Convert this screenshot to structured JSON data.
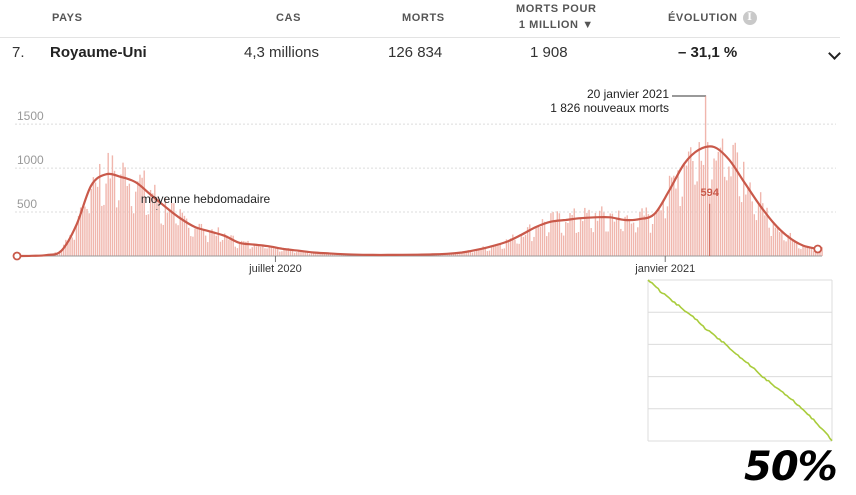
{
  "table": {
    "headers": {
      "country": "PAYS",
      "cases": "CAS",
      "deaths": "MORTS",
      "per_million_line1": "MORTS POUR",
      "per_million_line2": "1 MILLION ▼",
      "evolution": "ÉVOLUTION"
    },
    "row": {
      "rank": "7.",
      "country": "Royaume-Uni",
      "cases": "4,3 millions",
      "deaths": "126 834",
      "per_million": "1 908",
      "evolution": "– 31,1 %"
    }
  },
  "annotations": {
    "weekly_average": "moyenne hebdomadaire",
    "peak_date": "20 janvier 2021",
    "peak_deaths": "1 826 nouveaux morts",
    "current_value": "594"
  },
  "big_percent": "50%",
  "colors": {
    "bars": "#f0b6ad",
    "line": "#c9594a",
    "grid": "#dcdcdc",
    "mini_line": "#a9cc3c"
  },
  "chart_data": [
    {
      "type": "bar",
      "title": "",
      "xlabel": "",
      "ylabel": "",
      "ylim": [
        0,
        1900
      ],
      "yticks": [
        500,
        1000,
        1500
      ],
      "ytick_labels": [
        "500",
        "1000",
        "1500"
      ],
      "xtick_labels": [
        "juillet 2020",
        "janvier 2021"
      ],
      "xtick_dates": [
        "2020-07-01",
        "2021-01-01"
      ],
      "x_range": [
        "2020-03-01",
        "2021-03-16"
      ],
      "grid": true,
      "series": [
        {
          "kind": "line",
          "x": [
            "2020-03-01",
            "2020-03-08",
            "2020-03-15",
            "2020-03-22",
            "2020-03-29",
            "2020-04-05",
            "2020-04-12",
            "2020-04-19",
            "2020-04-26",
            "2020-05-03",
            "2020-05-10",
            "2020-05-17",
            "2020-05-24",
            "2020-05-31",
            "2020-06-07",
            "2020-06-14",
            "2020-06-21",
            "2020-06-28",
            "2020-07-05",
            "2020-07-12",
            "2020-07-19",
            "2020-07-26",
            "2020-08-02",
            "2020-08-09",
            "2020-08-16",
            "2020-08-23",
            "2020-08-30",
            "2020-09-06",
            "2020-09-13",
            "2020-09-20",
            "2020-09-27",
            "2020-10-04",
            "2020-10-11",
            "2020-10-18",
            "2020-10-25",
            "2020-11-01",
            "2020-11-08",
            "2020-11-15",
            "2020-11-22",
            "2020-11-29",
            "2020-12-06",
            "2020-12-13",
            "2020-12-20",
            "2020-12-27",
            "2021-01-03",
            "2021-01-10",
            "2021-01-17",
            "2021-01-24",
            "2021-01-31",
            "2021-02-07",
            "2021-02-14",
            "2021-02-21",
            "2021-02-28",
            "2021-03-07",
            "2021-03-14"
          ],
          "values": [
            0,
            2,
            10,
            60,
            350,
            800,
            930,
            900,
            840,
            700,
            560,
            430,
            330,
            280,
            230,
            150,
            130,
            110,
            80,
            60,
            40,
            30,
            20,
            15,
            12,
            12,
            14,
            15,
            18,
            25,
            40,
            70,
            110,
            160,
            240,
            330,
            390,
            410,
            430,
            440,
            440,
            410,
            420,
            480,
            750,
            1050,
            1210,
            1240,
            1100,
            850,
            600,
            380,
            220,
            120,
            80
          ]
        }
      ],
      "daily_peak": {
        "date": "2021-01-20",
        "value": 1826
      },
      "last_value": {
        "date": "2021-01-22",
        "value": 594
      }
    },
    {
      "type": "line",
      "title": "",
      "xlabel": "",
      "ylabel": "",
      "ylim": [
        0,
        1
      ],
      "grid": true,
      "series": [
        {
          "values": [
            1.0,
            0.97,
            0.93,
            0.9,
            0.87,
            0.84,
            0.81,
            0.78,
            0.75,
            0.71,
            0.68,
            0.65,
            0.62,
            0.59,
            0.55,
            0.52,
            0.49,
            0.46,
            0.42,
            0.39,
            0.36,
            0.33,
            0.3,
            0.27,
            0.24,
            0.2,
            0.17,
            0.13,
            0.09,
            0.05,
            0.0
          ]
        }
      ]
    }
  ]
}
